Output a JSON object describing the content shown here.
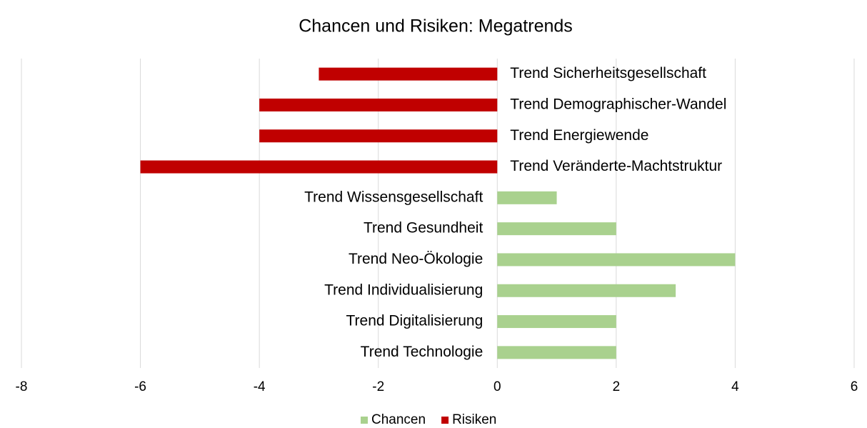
{
  "chart_data": {
    "type": "hbar",
    "title": "Chancen und Risiken: Megatrends",
    "categories": [
      "Trend Sicherheitsgesellschaft",
      "Trend Demographischer-Wandel",
      "Trend Energiewende",
      "Trend Veränderte-Machtstruktur",
      "Trend Wissensgesellschaft",
      "Trend Gesundheit",
      "Trend Neo-Ökologie",
      "Trend Individualisierung",
      "Trend Digitalisierung",
      "Trend Technologie"
    ],
    "series": [
      {
        "name": "Chancen",
        "color": "#a9d18e",
        "values": [
          null,
          null,
          null,
          null,
          1,
          2,
          4,
          3,
          2,
          2
        ]
      },
      {
        "name": "Risiken",
        "color": "#c00000",
        "values": [
          -3,
          -4,
          -4,
          -6,
          null,
          null,
          null,
          null,
          null,
          null
        ]
      }
    ],
    "xlim": [
      -8,
      6
    ],
    "xticks": [
      -8,
      -6,
      -4,
      -2,
      0,
      2,
      4,
      6
    ],
    "grid": true,
    "legend": "bottom"
  }
}
